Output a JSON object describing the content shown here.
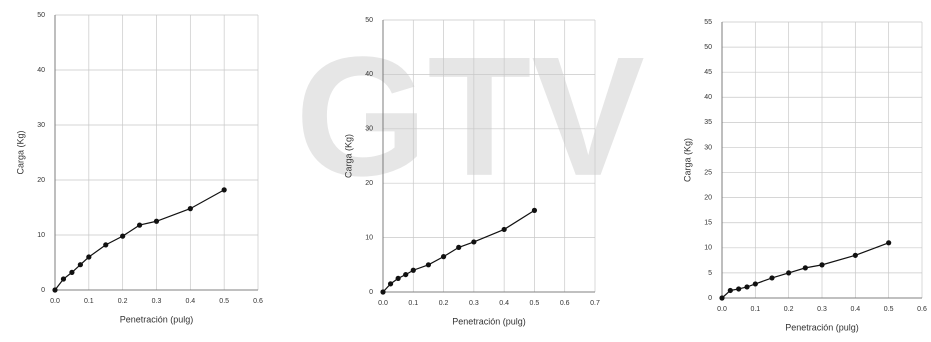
{
  "watermark": "GTV",
  "chart_data": [
    {
      "type": "line",
      "xlabel": "Penetración (pulg)",
      "ylabel": "Carga (Kg)",
      "color": "#111111",
      "grid": true,
      "markers": true,
      "x": [
        0,
        0.025,
        0.05,
        0.075,
        0.1,
        0.15,
        0.2,
        0.25,
        0.3,
        0.4,
        0.5
      ],
      "values": [
        0,
        2,
        3.2,
        4.6,
        6,
        8.2,
        9.8,
        11.8,
        12.5,
        14.8,
        18.2
      ],
      "xlim": [
        0,
        0.6
      ],
      "ylim": [
        0,
        50
      ],
      "xticks": [
        {
          "value": 0,
          "label": "0.0"
        },
        0.1,
        0.2,
        0.3,
        0.4,
        0.5,
        0.6
      ],
      "yticks": [
        0,
        10,
        20,
        30,
        40,
        50
      ]
    },
    {
      "type": "line",
      "xlabel": "Penetración (pulg)",
      "ylabel": "Carga (Kg)",
      "color": "#111111",
      "grid": true,
      "markers": true,
      "x": [
        0,
        0.025,
        0.05,
        0.075,
        0.1,
        0.15,
        0.2,
        0.25,
        0.3,
        0.4,
        0.5
      ],
      "values": [
        0,
        1.5,
        2.5,
        3.2,
        4,
        5,
        6.5,
        8.2,
        9.2,
        11.5,
        15
      ],
      "xlim": [
        0,
        0.7
      ],
      "ylim": [
        0,
        50
      ],
      "xticks": [
        {
          "value": 0,
          "label": "0.0"
        },
        0.1,
        0.2,
        0.3,
        0.4,
        0.5,
        0.6,
        0.7
      ],
      "yticks": [
        0,
        10,
        20,
        30,
        40,
        50
      ]
    },
    {
      "type": "line",
      "xlabel": "Penetración (pulg)",
      "ylabel": "Carga (Kg)",
      "color": "#111111",
      "grid": true,
      "markers": true,
      "x": [
        0,
        0.025,
        0.05,
        0.075,
        0.1,
        0.15,
        0.2,
        0.25,
        0.3,
        0.4,
        0.5
      ],
      "values": [
        0,
        1.5,
        1.8,
        2.2,
        2.8,
        4,
        5,
        6,
        6.6,
        8.5,
        11
      ],
      "xlim": [
        0,
        0.6
      ],
      "ylim": [
        0,
        55
      ],
      "xticks": [
        {
          "value": 0,
          "label": "0.0"
        },
        0.1,
        0.2,
        0.3,
        0.4,
        0.5,
        0.6
      ],
      "yticks": [
        0,
        5,
        10,
        15,
        20,
        25,
        30,
        35,
        40,
        45,
        50,
        55
      ]
    }
  ]
}
